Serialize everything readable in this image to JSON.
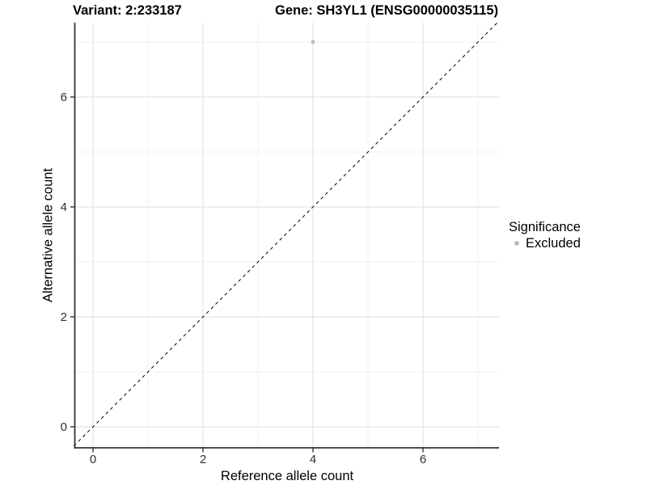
{
  "figure": {
    "title_left": "Variant: 2:233187",
    "title_right": "Gene: SH3YL1 (ENSG00000035115)"
  },
  "chart_data": {
    "type": "scatter",
    "title": "Variant: 2:233187   Gene: SH3YL1 (ENSG00000035115)",
    "xlabel": "Reference allele count",
    "ylabel": "Alternative allele count",
    "xlim": [
      -0.35,
      7.38
    ],
    "ylim": [
      -0.38,
      7.35
    ],
    "x_major_ticks": [
      0,
      2,
      4,
      6
    ],
    "x_minor_ticks": [
      1,
      3,
      5,
      7
    ],
    "y_major_ticks": [
      0,
      2,
      4,
      6
    ],
    "y_minor_ticks": [
      1,
      3,
      5,
      7
    ],
    "grid": "major+minor",
    "identity_line": {
      "slope": 1,
      "intercept": 0,
      "style": "dashed",
      "color": "#000000"
    },
    "series": [
      {
        "name": "Excluded",
        "color": "#bdbdbd",
        "points": [
          [
            4,
            7
          ]
        ]
      }
    ],
    "legend": {
      "title": "Significance",
      "position": "right",
      "entries": [
        {
          "label": "Excluded",
          "color": "#bdbdbd",
          "marker": "circle"
        }
      ]
    }
  },
  "colors": {
    "background": "#ffffff",
    "grid_major": "#e3e3e3",
    "grid_minor": "#f1f1f1",
    "axis_line": "#333333",
    "tick_mark": "#333333",
    "tick_label": "#303030",
    "title": "#000000",
    "point": "#bdbdbd"
  }
}
